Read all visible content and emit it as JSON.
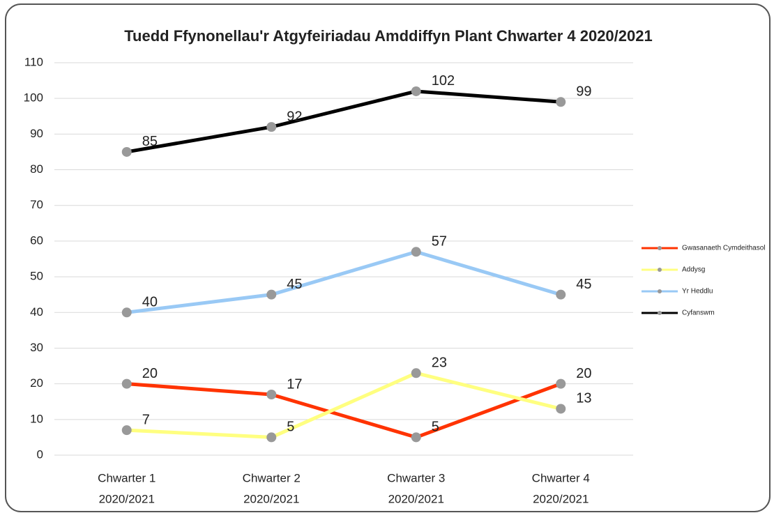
{
  "chart_data": {
    "type": "line",
    "title": "Tuedd Ffynonellau'r Atgyfeiriadau Amddiffyn Plant Chwarter 4 2020/2021",
    "categories": [
      [
        "Chwarter 1",
        "2020/2021"
      ],
      [
        "Chwarter 2",
        "2020/2021"
      ],
      [
        "Chwarter 3",
        "2020/2021"
      ],
      [
        "Chwarter 4",
        "2020/2021"
      ]
    ],
    "series": [
      {
        "name": "Gwasanaeth Cymdeithasol",
        "color": "#ff3300",
        "values": [
          20,
          17,
          5,
          20
        ]
      },
      {
        "name": "Addysg",
        "color": "#ffff80",
        "values": [
          7,
          5,
          23,
          13
        ]
      },
      {
        "name": "Yr Heddlu",
        "color": "#99c9f5",
        "values": [
          40,
          45,
          57,
          45
        ]
      },
      {
        "name": "Cyfanswm",
        "color": "#000000",
        "values": [
          85,
          92,
          102,
          99
        ]
      }
    ],
    "marker_color": "#999999",
    "ylim": [
      0,
      110
    ],
    "yticks": [
      0,
      10,
      20,
      30,
      40,
      50,
      60,
      70,
      80,
      90,
      100,
      110
    ],
    "grid": true,
    "legend": "right"
  }
}
